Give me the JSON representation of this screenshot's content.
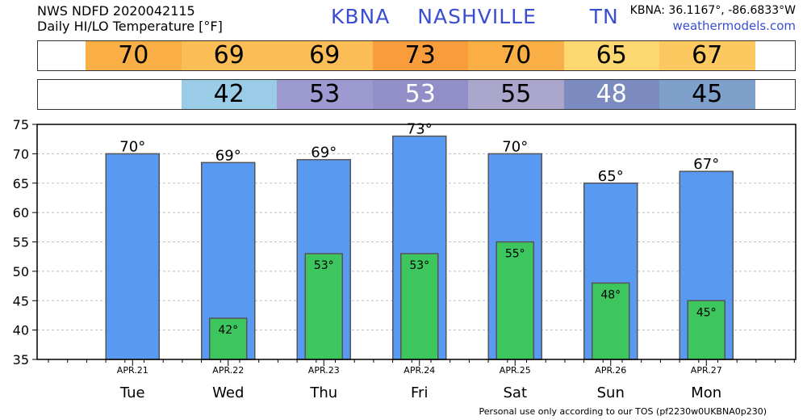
{
  "header": {
    "line1": "NWS NDFD 2020042115",
    "line2": "Daily HI/LO Temperature [°F]",
    "station": "KBNA",
    "city": "NASHVILLE",
    "state": "TN",
    "coords": "KBNA: 36.1167°, -86.6833°W",
    "site": "weathermodels.com"
  },
  "colors": {
    "hi_strip": [
      "#f9ae46",
      "#fbbe57",
      "#fbbe57",
      "#f99c3c",
      "#f9ae46",
      "#fdd870",
      "#fcc860"
    ],
    "lo_strip": [
      null,
      "#9acce8",
      "#9c9ad0",
      "#928ec8",
      "#aaa6cc",
      "#7c8cc0",
      "#80a0cc"
    ],
    "hi_bar": "#5899f1",
    "lo_bar": "#3dc55e"
  },
  "footer": "Personal use only according to our TOS (pf2230w0UKBNA0p230)",
  "chart_data": {
    "type": "bar",
    "categories": [
      "Tue",
      "Wed",
      "Thu",
      "Fri",
      "Sat",
      "Sun",
      "Mon"
    ],
    "dates": [
      "APR.21",
      "APR.22",
      "APR.23",
      "APR.24",
      "APR.25",
      "APR.26",
      "APR.27"
    ],
    "ylim": [
      35,
      75
    ],
    "yticks": [
      35,
      40,
      45,
      50,
      55,
      60,
      65,
      70,
      75
    ],
    "grid": true,
    "series": [
      {
        "values": [
          70,
          68.5,
          69,
          73,
          70,
          65,
          67
        ],
        "labels": [
          "70°",
          "69°",
          "69°",
          "73°",
          "70°",
          "65°",
          "67°"
        ]
      },
      {
        "values": [
          null,
          42,
          53,
          53,
          55,
          48,
          45
        ],
        "labels": [
          null,
          "42°",
          "53°",
          "53°",
          "55°",
          "48°",
          "45°"
        ]
      }
    ],
    "hi_strip_labels": [
      "70",
      "69",
      "69",
      "73",
      "70",
      "65",
      "67"
    ],
    "lo_strip_labels": [
      null,
      "42",
      "53",
      "53",
      "55",
      "48",
      "45"
    ]
  }
}
